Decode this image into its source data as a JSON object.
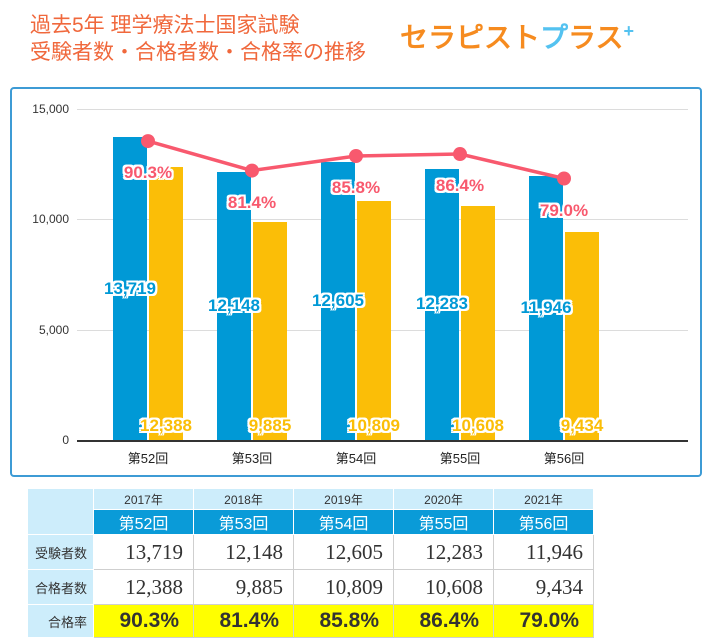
{
  "header": {
    "title_line1": "過去5年 理学療法士国家試験",
    "title_line2": "受験者数・合格者数・合格率の推移",
    "logo": {
      "text_orange_1": "セラピスト",
      "text_blue": "プ",
      "text_orange_2": "ラス",
      "plus": "+"
    }
  },
  "colors": {
    "title_orange": "#F0683C",
    "logo_orange": "#F68B1F",
    "logo_blue": "#54C2F0",
    "panel_border": "#3D9BD5",
    "bar_examinees": "#0099D6",
    "bar_passers": "#FBBE07",
    "rate_line": "#F8596E",
    "table_exam_header_bg": "#0A9BD8",
    "table_light_blue_bg": "#CDEDFB",
    "rate_row_bg": "#FFFF00"
  },
  "chart_data": {
    "type": "bar",
    "title": "",
    "categories": [
      "第52回",
      "第53回",
      "第54回",
      "第55回",
      "第56回"
    ],
    "series": [
      {
        "name": "受験者数",
        "type": "bar",
        "color": "#0099D6",
        "values": [
          13719,
          12148,
          12605,
          12283,
          11946
        ]
      },
      {
        "name": "合格者数",
        "type": "bar",
        "color": "#FBBE07",
        "values": [
          12388,
          9885,
          10809,
          10608,
          9434
        ]
      },
      {
        "name": "合格率",
        "type": "line",
        "color": "#F8596E",
        "axis": "secondary",
        "unit": "%",
        "values": [
          90.3,
          81.4,
          85.8,
          86.4,
          79.0
        ]
      }
    ],
    "xlabel": "",
    "ylabel": "",
    "ylim": [
      0,
      15000
    ],
    "yticks": [
      0,
      5000,
      10000,
      15000
    ],
    "ytick_labels": [
      "0",
      "5,000",
      "10,000",
      "15,000"
    ],
    "y2lim": [
      0,
      100
    ],
    "grid": true,
    "legend": "none"
  },
  "table": {
    "corner": "",
    "years": [
      "2017年",
      "2018年",
      "2019年",
      "2020年",
      "2021年"
    ],
    "exams": [
      "第52回",
      "第53回",
      "第54回",
      "第55回",
      "第56回"
    ],
    "rows": [
      {
        "label": "受験者数",
        "values": [
          "13,719",
          "12,148",
          "12,605",
          "12,283",
          "11,946"
        ]
      },
      {
        "label": "合格者数",
        "values": [
          "12,388",
          "9,885",
          "10,809",
          "10,608",
          "9,434"
        ]
      },
      {
        "label": "合格率",
        "values": [
          "90.3%",
          "81.4%",
          "85.8%",
          "86.4%",
          "79.0%"
        ],
        "highlight": true
      }
    ]
  }
}
